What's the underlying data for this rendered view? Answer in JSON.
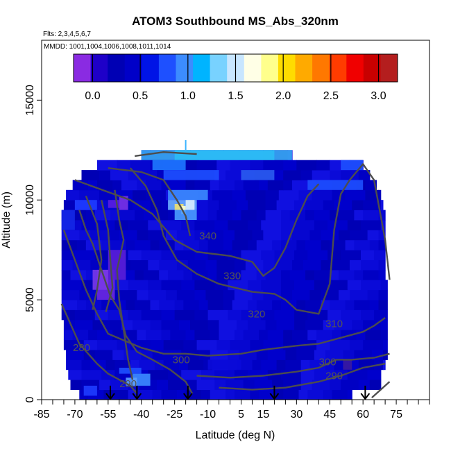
{
  "chart_data": {
    "type": "heatmap",
    "title": "ATOM3 Southbound MS_Abs_320nm",
    "flights_label": "Flts: 2,3,4,5,6,7",
    "mmdd_label": "MMDD: 1001,1004,1006,1008,1011,1014",
    "xlabel": "Latitude (deg N)",
    "ylabel": "Altitude (m)",
    "xlim": [
      -85,
      90
    ],
    "ylim": [
      0,
      18000
    ],
    "x_ticks": [
      "-85",
      "-70",
      "-55",
      "-40",
      "-25",
      "-10",
      "5",
      "15",
      "30",
      "45",
      "60",
      "75"
    ],
    "y_ticks": [
      "0",
      "5000",
      "10000",
      "15000"
    ],
    "colorbar": {
      "range": [
        -0.2,
        3.2
      ],
      "ticks": [
        "0.0",
        "0.5",
        "1.0",
        "1.5",
        "2.0",
        "2.5",
        "3.0"
      ],
      "colors": [
        "#8a2be2",
        "#1e00c8",
        "#0000b4",
        "#0000c8",
        "#0014e6",
        "#1e50ff",
        "#3c8cff",
        "#00b4ff",
        "#78d2ff",
        "#c8e6ff",
        "#ffffe6",
        "#ffff8c",
        "#ffdc00",
        "#ffaa00",
        "#ff7800",
        "#ff3c00",
        "#f00000",
        "#c80000",
        "#b41e1e"
      ]
    },
    "contour_labels": [
      {
        "label": "340",
        "lat": -10,
        "alt": 8200
      },
      {
        "label": "330",
        "lat": 1,
        "alt": 6200
      },
      {
        "label": "320",
        "lat": 12,
        "alt": 4300
      },
      {
        "label": "310",
        "lat": 47,
        "alt": 3800
      },
      {
        "label": "300",
        "lat": -22,
        "alt": 2000
      },
      {
        "label": "300",
        "lat": 44,
        "alt": 1900
      },
      {
        "label": "290",
        "lat": -46,
        "alt": 800
      },
      {
        "label": "290",
        "lat": 47,
        "alt": 1200
      },
      {
        "label": "280",
        "lat": -67,
        "alt": 2600
      }
    ],
    "arrows_lat": [
      -54,
      -42,
      -19,
      20,
      61
    ]
  }
}
